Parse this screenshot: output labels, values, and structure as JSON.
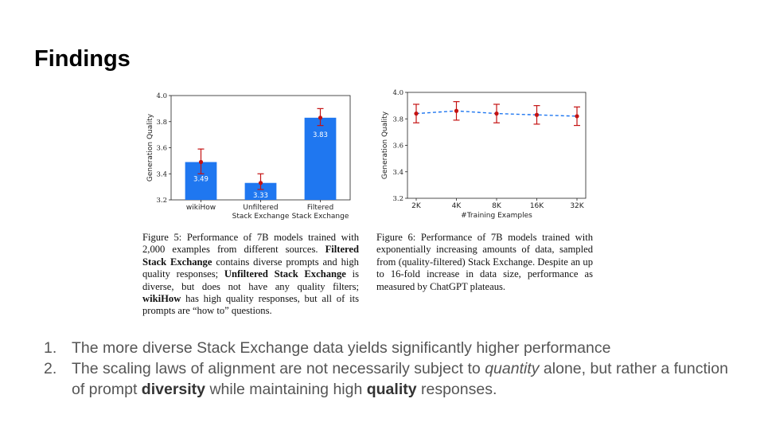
{
  "slide": {
    "title": "Findings"
  },
  "chart_data": [
    {
      "type": "bar",
      "categories": [
        "wikiHow",
        "Unfiltered\nStack Exchange",
        "Filtered\nStack Exchange"
      ],
      "values": [
        3.49,
        3.33,
        3.83
      ],
      "value_labels": [
        "3.49",
        "3.33",
        "3.83"
      ],
      "error_bars": [
        [
          3.4,
          3.59
        ],
        [
          3.28,
          3.4
        ],
        [
          3.77,
          3.9
        ]
      ],
      "ylabel": "Generation Quality",
      "xlabel": "",
      "ylim": [
        3.2,
        4.0
      ],
      "yticks": [
        "3.2",
        "3.4",
        "3.6",
        "3.8",
        "4.0"
      ],
      "colors": {
        "bar": "#1f77f0",
        "marker": "#c41212"
      }
    },
    {
      "type": "line",
      "x": [
        "2K",
        "4K",
        "8K",
        "16K",
        "32K"
      ],
      "values": [
        3.84,
        3.86,
        3.84,
        3.83,
        3.82
      ],
      "error_bars": [
        [
          3.77,
          3.91
        ],
        [
          3.79,
          3.93
        ],
        [
          3.77,
          3.91
        ],
        [
          3.76,
          3.9
        ],
        [
          3.75,
          3.89
        ]
      ],
      "ylabel": "Generation Quality",
      "xlabel": "#Training Examples",
      "ylim": [
        3.2,
        4.0
      ],
      "yticks": [
        "3.2",
        "3.4",
        "3.6",
        "3.8",
        "4.0"
      ],
      "colors": {
        "line": "#1f77f0",
        "marker": "#c41212"
      }
    }
  ],
  "captions": {
    "fig5": {
      "label": "Figure 5:",
      "text1": "Performance of 7B models trained with 2,000 examples from different sources.",
      "bold1": "Filtered Stack Exchange",
      "text2": "contains diverse prompts and high quality responses;",
      "bold2": "Unfiltered Stack Exchange",
      "text3": "is diverse, but does not have any quality filters;",
      "bold3": "wikiHow",
      "text4": "has high quality responses, but all of its prompts are “how to” questions."
    },
    "fig6": {
      "label": "Figure 6:",
      "text": "Performance of 7B models trained with exponentially increasing amounts of data, sampled from (quality-filtered) Stack Exchange. Despite an up to 16-fold increase in data size, performance as measured by ChatGPT plateaus."
    }
  },
  "findings": [
    {
      "num": "1.",
      "text": "The more diverse Stack Exchange data yields significantly higher performance"
    },
    {
      "num": "2.",
      "part1": "The scaling laws of alignment are not necessarily subject to",
      "italic": "quantity",
      "part2": "alone, but rather a function of prompt",
      "bold1": "diversity",
      "part3": "while maintaining high",
      "bold2": "quality",
      "part4": "responses."
    }
  ]
}
